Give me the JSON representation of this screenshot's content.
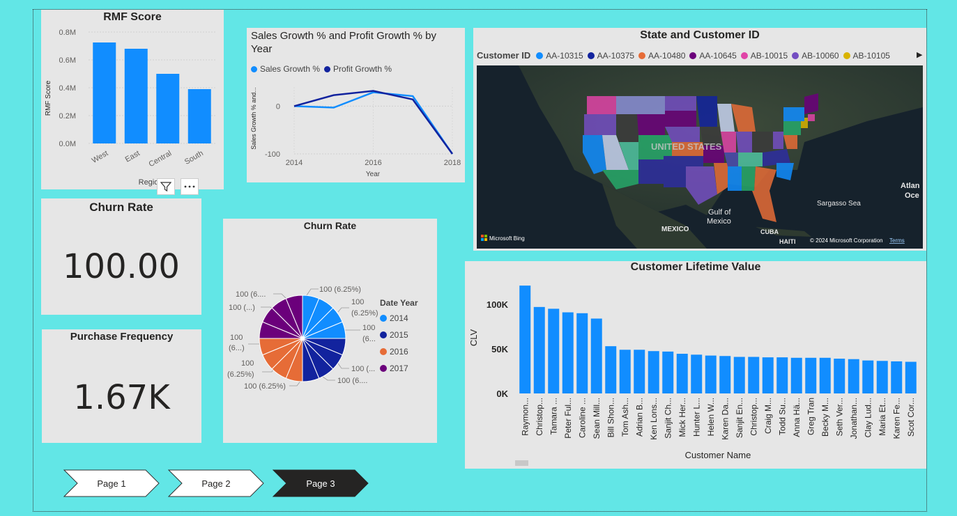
{
  "rmf": {
    "title": "RMF Score",
    "ylabel": "RMF Score",
    "xlabel": "Region",
    "xlabel_visible": "Regio",
    "filter_icon": "filter-icon",
    "more_icon": "more-options-icon"
  },
  "sales_growth": {
    "title_line1": "Sales Growth % and Profit Growth % by",
    "title_line2": "Year",
    "ylabel": "Sales Growth % and...",
    "xlabel": "Year",
    "legend": [
      "Sales Growth %",
      "Profit Growth %"
    ]
  },
  "map": {
    "title": "State and Customer ID",
    "legend_title": "Customer ID",
    "legend": [
      {
        "label": "AA-10315",
        "color": "#118DFF"
      },
      {
        "label": "AA-10375",
        "color": "#12239E"
      },
      {
        "label": "AA-10480",
        "color": "#E66C37"
      },
      {
        "label": "AA-10645",
        "color": "#6B007B"
      },
      {
        "label": "AB-10015",
        "color": "#E044A7"
      },
      {
        "label": "AB-10060",
        "color": "#744EC2"
      },
      {
        "label": "AB-10105",
        "color": "#D9B300"
      }
    ],
    "labels": {
      "country": "UNITED STATES",
      "gulf": "Gulf of Mexico",
      "gulf1": "Gulf of",
      "gulf2": "Mexico",
      "mexico": "MEXICO",
      "cuba": "CUBA",
      "haiti": "HAITI",
      "sargasso": "Sargasso Sea",
      "atlantic1": "Atlan",
      "atlantic2": "Oce"
    },
    "brand": "Microsoft Bing",
    "copyright": "© 2024 Microsoft Corporation",
    "terms": "Terms"
  },
  "churn_card": {
    "title": "Churn Rate",
    "value": "100.00"
  },
  "purchase_card": {
    "title": "Purchase Frequency",
    "value": "1.67K"
  },
  "churn_pie": {
    "title": "Churn Rate",
    "legend_title": "Date Year",
    "labels": {
      "l1": "100 (6.25%)",
      "l2a": "100",
      "l2b": "(6.25%)",
      "l3a": "100",
      "l3b": "(6...",
      "l4": "100 (...",
      "l5": "100 (6....",
      "l6": "100 (6.25%)",
      "l7a": "100",
      "l7b": "(6.25%)",
      "l8a": "100",
      "l8b": "(6...)",
      "l9": "100 (...)",
      "l10": "100 (6...."
    }
  },
  "clv": {
    "title": "Customer Lifetime Value",
    "ylabel": "CLV",
    "xlabel": "Customer Name"
  },
  "pages": [
    {
      "label": "Page 1",
      "active": false
    },
    {
      "label": "Page 2",
      "active": false
    },
    {
      "label": "Page 3",
      "active": true
    }
  ],
  "chart_data": [
    {
      "type": "bar",
      "title": "RMF Score",
      "categories": [
        "West",
        "East",
        "Central",
        "South"
      ],
      "values": [
        0.725,
        0.68,
        0.5,
        0.39
      ],
      "ylabel": "RMF Score",
      "xlabel": "Region",
      "ylim": [
        0,
        0.8
      ],
      "yticks": [
        "0.0M",
        "0.2M",
        "0.4M",
        "0.6M",
        "0.8M"
      ],
      "color": "#118DFF"
    },
    {
      "type": "line",
      "title": "Sales Growth % and Profit Growth % by Year",
      "x": [
        2014,
        2015,
        2016,
        2017,
        2018
      ],
      "xticks": [
        "2014",
        "2016",
        "2018"
      ],
      "yticks": [
        "0",
        "-100"
      ],
      "ylim": [
        -100,
        40
      ],
      "series": [
        {
          "name": "Sales Growth %",
          "values": [
            0,
            -3,
            29,
            21,
            -100
          ],
          "color": "#118DFF"
        },
        {
          "name": "Profit Growth %",
          "values": [
            0,
            23,
            32,
            14,
            -100
          ],
          "color": "#12239E"
        }
      ]
    },
    {
      "type": "pie",
      "title": "Churn Rate",
      "legend": [
        {
          "label": "2014",
          "color": "#118DFF"
        },
        {
          "label": "2015",
          "color": "#12239E"
        },
        {
          "label": "2016",
          "color": "#E66C37"
        },
        {
          "label": "2017",
          "color": "#6B007B"
        }
      ],
      "values": [
        100,
        100,
        100,
        100,
        100,
        100,
        100,
        100,
        100,
        100,
        100,
        100,
        100,
        100,
        100,
        100
      ],
      "slice_years": [
        "2014",
        "2014",
        "2014",
        "2014",
        "2015",
        "2015",
        "2015",
        "2015",
        "2016",
        "2016",
        "2016",
        "2016",
        "2017",
        "2017",
        "2017",
        "2017"
      ]
    },
    {
      "type": "bar",
      "title": "Customer Lifetime Value",
      "ylabel": "CLV",
      "xlabel": "Customer Name",
      "ylim": [
        0,
        125000
      ],
      "yticks": [
        "0K",
        "50K",
        "100K"
      ],
      "color": "#118DFF",
      "categories": [
        "Raymon...",
        "Christop...",
        "Tamara ...",
        "Peter Ful...",
        "Caroline ...",
        "Sean Mill...",
        "Bill Shon...",
        "Tom Ash...",
        "Adrian B...",
        "Ken Lons...",
        "Sanjit Ch...",
        "Mick Her...",
        "Hunter L...",
        "Helen W...",
        "Karen Da...",
        "Sanjit En...",
        "Christop...",
        "Craig M...",
        "Todd Su...",
        "Anna Hä...",
        "Greg Tran",
        "Becky M...",
        "Seth Ver...",
        "Jonathan...",
        "Clay Lud...",
        "Maria Et...",
        "Karen Fe...",
        "Scot Cor..."
      ],
      "values": [
        121000,
        97000,
        95000,
        91000,
        90000,
        84000,
        53000,
        49000,
        49000,
        47500,
        47000,
        44500,
        43500,
        42500,
        42000,
        41000,
        41000,
        40500,
        40500,
        40000,
        40000,
        40000,
        39000,
        38500,
        37000,
        36500,
        36000,
        35500
      ]
    }
  ]
}
